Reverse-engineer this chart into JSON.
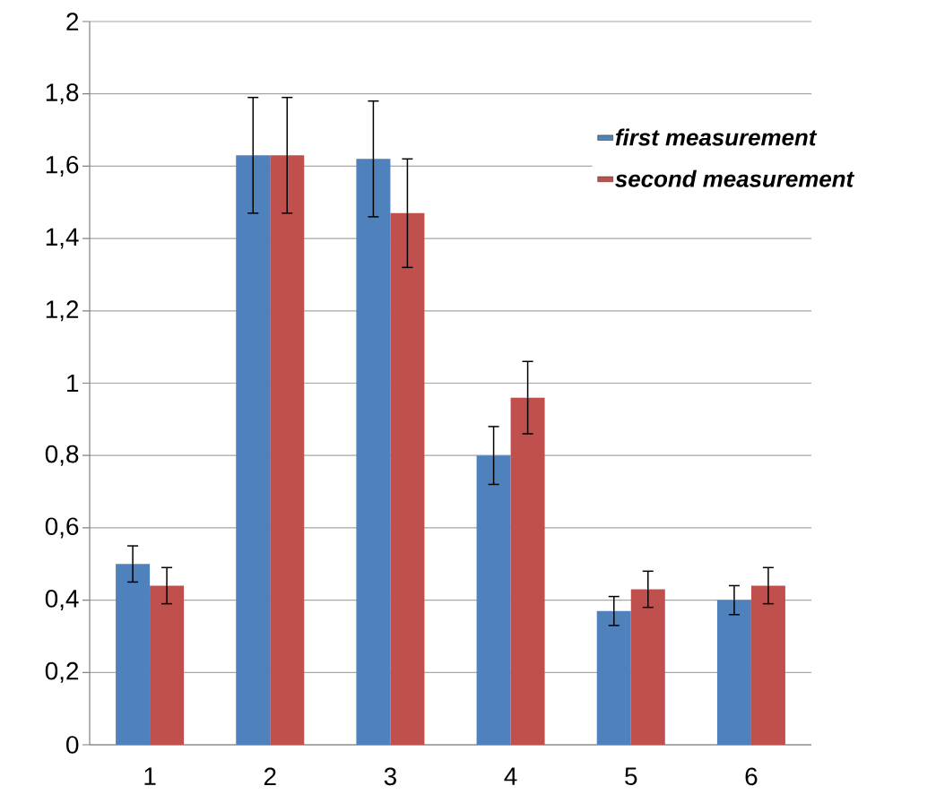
{
  "chart_data": {
    "type": "bar",
    "categories": [
      "1",
      "2",
      "3",
      "4",
      "5",
      "6"
    ],
    "series": [
      {
        "name": "first measurement",
        "color": "#4f81bd",
        "values": [
          0.5,
          1.63,
          1.62,
          0.8,
          0.37,
          0.4
        ],
        "errors": [
          0.05,
          0.16,
          0.16,
          0.08,
          0.04,
          0.04
        ]
      },
      {
        "name": "second measurement",
        "color": "#c0504d",
        "values": [
          0.44,
          1.63,
          1.47,
          0.96,
          0.43,
          0.44
        ],
        "errors": [
          0.05,
          0.16,
          0.15,
          0.1,
          0.05,
          0.05
        ]
      }
    ],
    "ylim": [
      0,
      2
    ],
    "yticks": [
      0,
      {
        "value": 0.2,
        "label": "0,2"
      },
      {
        "value": 0.4,
        "label": "0,4"
      },
      {
        "value": 0.6,
        "label": "0,6"
      },
      {
        "value": 0.8,
        "label": "0,8"
      },
      1,
      {
        "value": 1.2,
        "label": "1,2"
      },
      {
        "value": 1.4,
        "label": "1,4"
      },
      {
        "value": 1.6,
        "label": "1,6"
      },
      {
        "value": 1.8,
        "label": "1,8"
      },
      2
    ],
    "grid": "y",
    "legend": "top right"
  }
}
